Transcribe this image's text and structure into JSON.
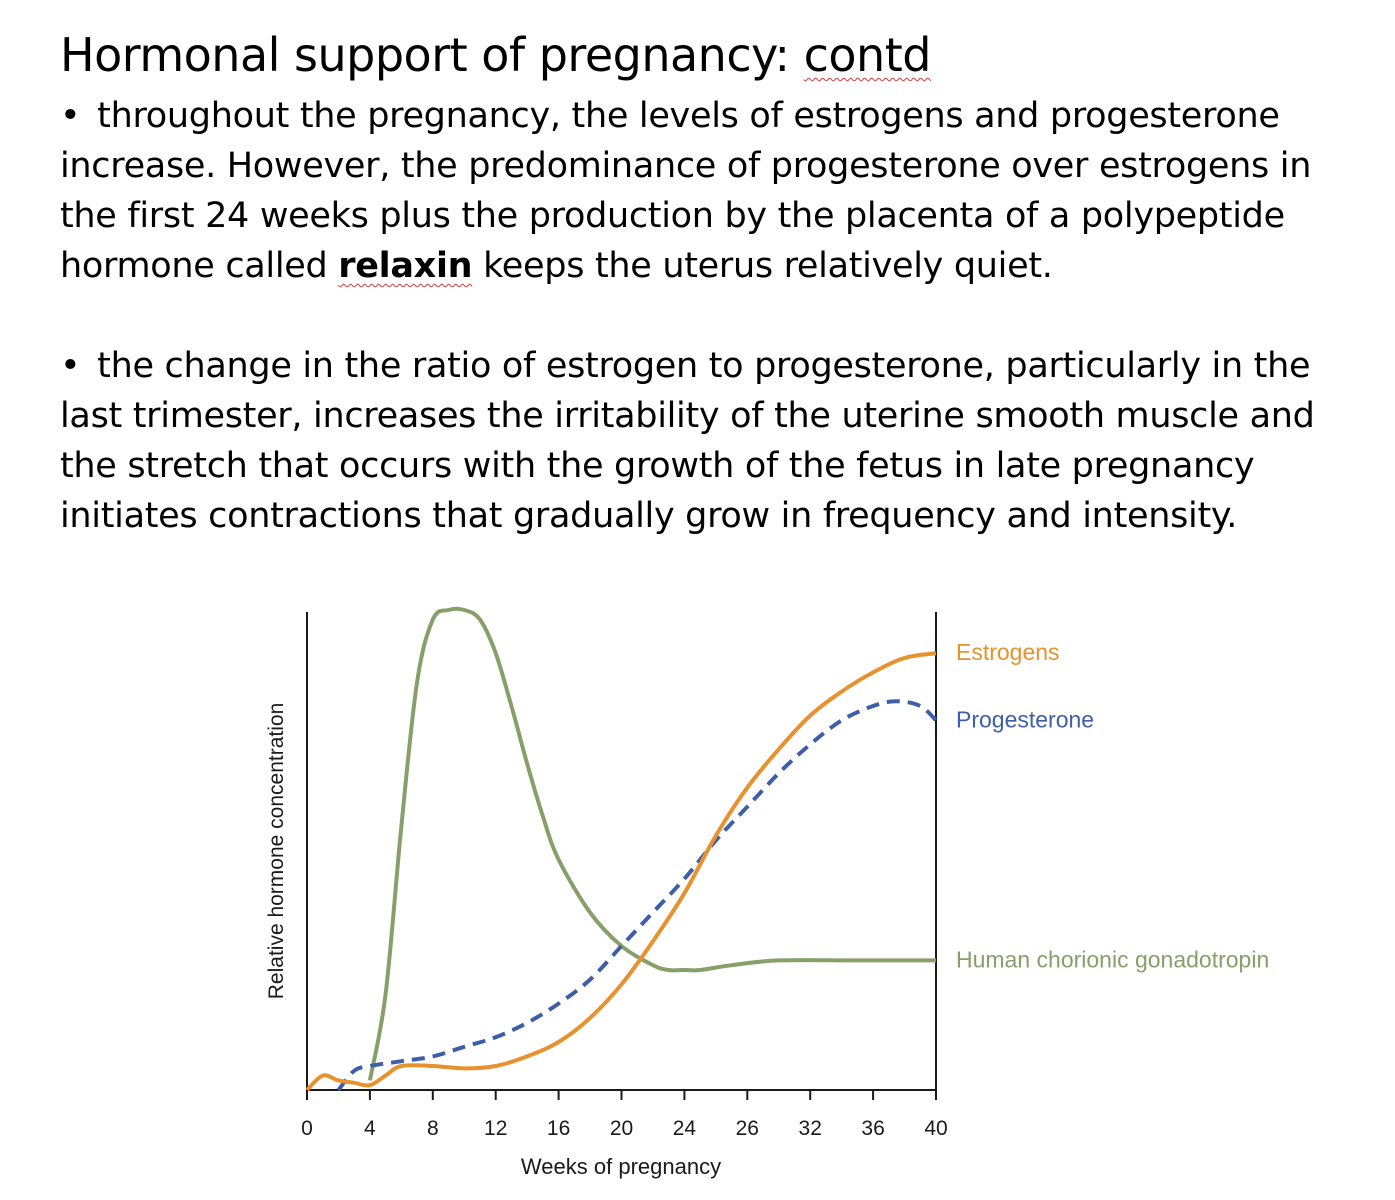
{
  "slide": {
    "title_main": "Hormonal support of pregnancy: ",
    "title_tail": "contd",
    "bullet_glyph": "•",
    "paragraph1": {
      "before": " throughout the pregnancy, the levels of estrogens and progesterone increase. However, the predominance of progesterone over estrogens in the first 24 weeks plus the production by the placenta of a polypeptide hormone called ",
      "bold": "relaxin",
      "after": " keeps the uterus relatively quiet."
    },
    "paragraph2": " the change in the ratio of estrogen to progesterone, particularly in the last trimester, increases the irritability of the uterine smooth muscle and the stretch that occurs with the growth of the fetus in late pregnancy initiates contractions that gradually grow in frequency and intensity."
  },
  "chart_data": {
    "type": "line",
    "xlabel": "Weeks of pregnancy",
    "ylabel": "Relative hormone concentration",
    "x_tick_labels": [
      "0",
      "4",
      "8",
      "12",
      "16",
      "20",
      "24",
      "26",
      "32",
      "36",
      "40"
    ],
    "xlim": [
      0,
      40
    ],
    "ylim": [
      0,
      100
    ],
    "y_ticks_shown": false,
    "grid": false,
    "legend": "labels at right end of each line",
    "series": [
      {
        "name": "Estrogens",
        "color": "#e8912f",
        "style": "solid",
        "points": [
          [
            0,
            0
          ],
          [
            1,
            3
          ],
          [
            2,
            2
          ],
          [
            3,
            1.5
          ],
          [
            4,
            1
          ],
          [
            5,
            3
          ],
          [
            6,
            5
          ],
          [
            8,
            5
          ],
          [
            10,
            4.5
          ],
          [
            12,
            5
          ],
          [
            14,
            7
          ],
          [
            16,
            10
          ],
          [
            18,
            15
          ],
          [
            20,
            22
          ],
          [
            22,
            31
          ],
          [
            24,
            41
          ],
          [
            26,
            53
          ],
          [
            28,
            63
          ],
          [
            30,
            71
          ],
          [
            32,
            78
          ],
          [
            34,
            83
          ],
          [
            36,
            87
          ],
          [
            38,
            90
          ],
          [
            40,
            91
          ]
        ]
      },
      {
        "name": "Progesterone",
        "color": "#3f5ea8",
        "style": "dashed",
        "points": [
          [
            2,
            0
          ],
          [
            3,
            4
          ],
          [
            4,
            5
          ],
          [
            6,
            6
          ],
          [
            8,
            7
          ],
          [
            10,
            9
          ],
          [
            12,
            11
          ],
          [
            14,
            14
          ],
          [
            16,
            18
          ],
          [
            18,
            23
          ],
          [
            20,
            30
          ],
          [
            22,
            37
          ],
          [
            24,
            44
          ],
          [
            26,
            52
          ],
          [
            28,
            59
          ],
          [
            30,
            66
          ],
          [
            32,
            72
          ],
          [
            34,
            77
          ],
          [
            36,
            80
          ],
          [
            37.5,
            81
          ],
          [
            39,
            80
          ],
          [
            40,
            77
          ]
        ]
      },
      {
        "name": "Human chorionic gonadotropin",
        "color": "#87a06a",
        "style": "solid",
        "points": [
          [
            4,
            2
          ],
          [
            5,
            20
          ],
          [
            6,
            55
          ],
          [
            7,
            85
          ],
          [
            8,
            98
          ],
          [
            9,
            100
          ],
          [
            10,
            100
          ],
          [
            11,
            98
          ],
          [
            12,
            91
          ],
          [
            13,
            80
          ],
          [
            14,
            68
          ],
          [
            15,
            57
          ],
          [
            16,
            48
          ],
          [
            18,
            37
          ],
          [
            20,
            30
          ],
          [
            22,
            26
          ],
          [
            23,
            25
          ],
          [
            24,
            25
          ],
          [
            25,
            25
          ],
          [
            27,
            26
          ],
          [
            30,
            27
          ],
          [
            35,
            27
          ],
          [
            40,
            27
          ]
        ]
      }
    ]
  }
}
